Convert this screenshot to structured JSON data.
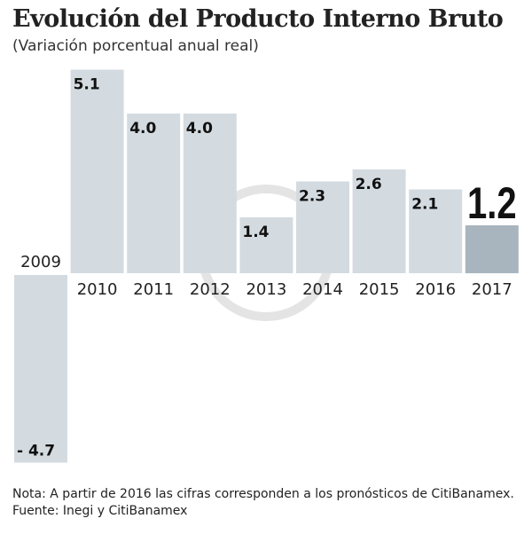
{
  "chart_data": {
    "type": "bar",
    "title": "Evolución del Producto Interno Bruto",
    "subtitle": "(Variación porcentual anual real)",
    "categories": [
      "2009",
      "2010",
      "2011",
      "2012",
      "2013",
      "2014",
      "2015",
      "2016",
      "2017"
    ],
    "values": [
      -4.7,
      5.1,
      4.0,
      4.0,
      1.4,
      2.3,
      2.6,
      2.1,
      1.2
    ],
    "value_labels": [
      "- 4.7",
      "5.1",
      "4.0",
      "4.0",
      "1.4",
      "2.3",
      "2.6",
      "2.1",
      "1.2"
    ],
    "highlight": "2017",
    "colors": {
      "bar": "#d4dbe0",
      "highlight": "#a9b5be",
      "text": "#111111"
    },
    "grid": false,
    "xlabel": "",
    "ylabel": ""
  },
  "notes": [
    "Nota: A partir de 2016 las cifras corresponden a los pronósticos de CitiBanamex.",
    "Fuente: Inegi y CitiBanamex"
  ]
}
